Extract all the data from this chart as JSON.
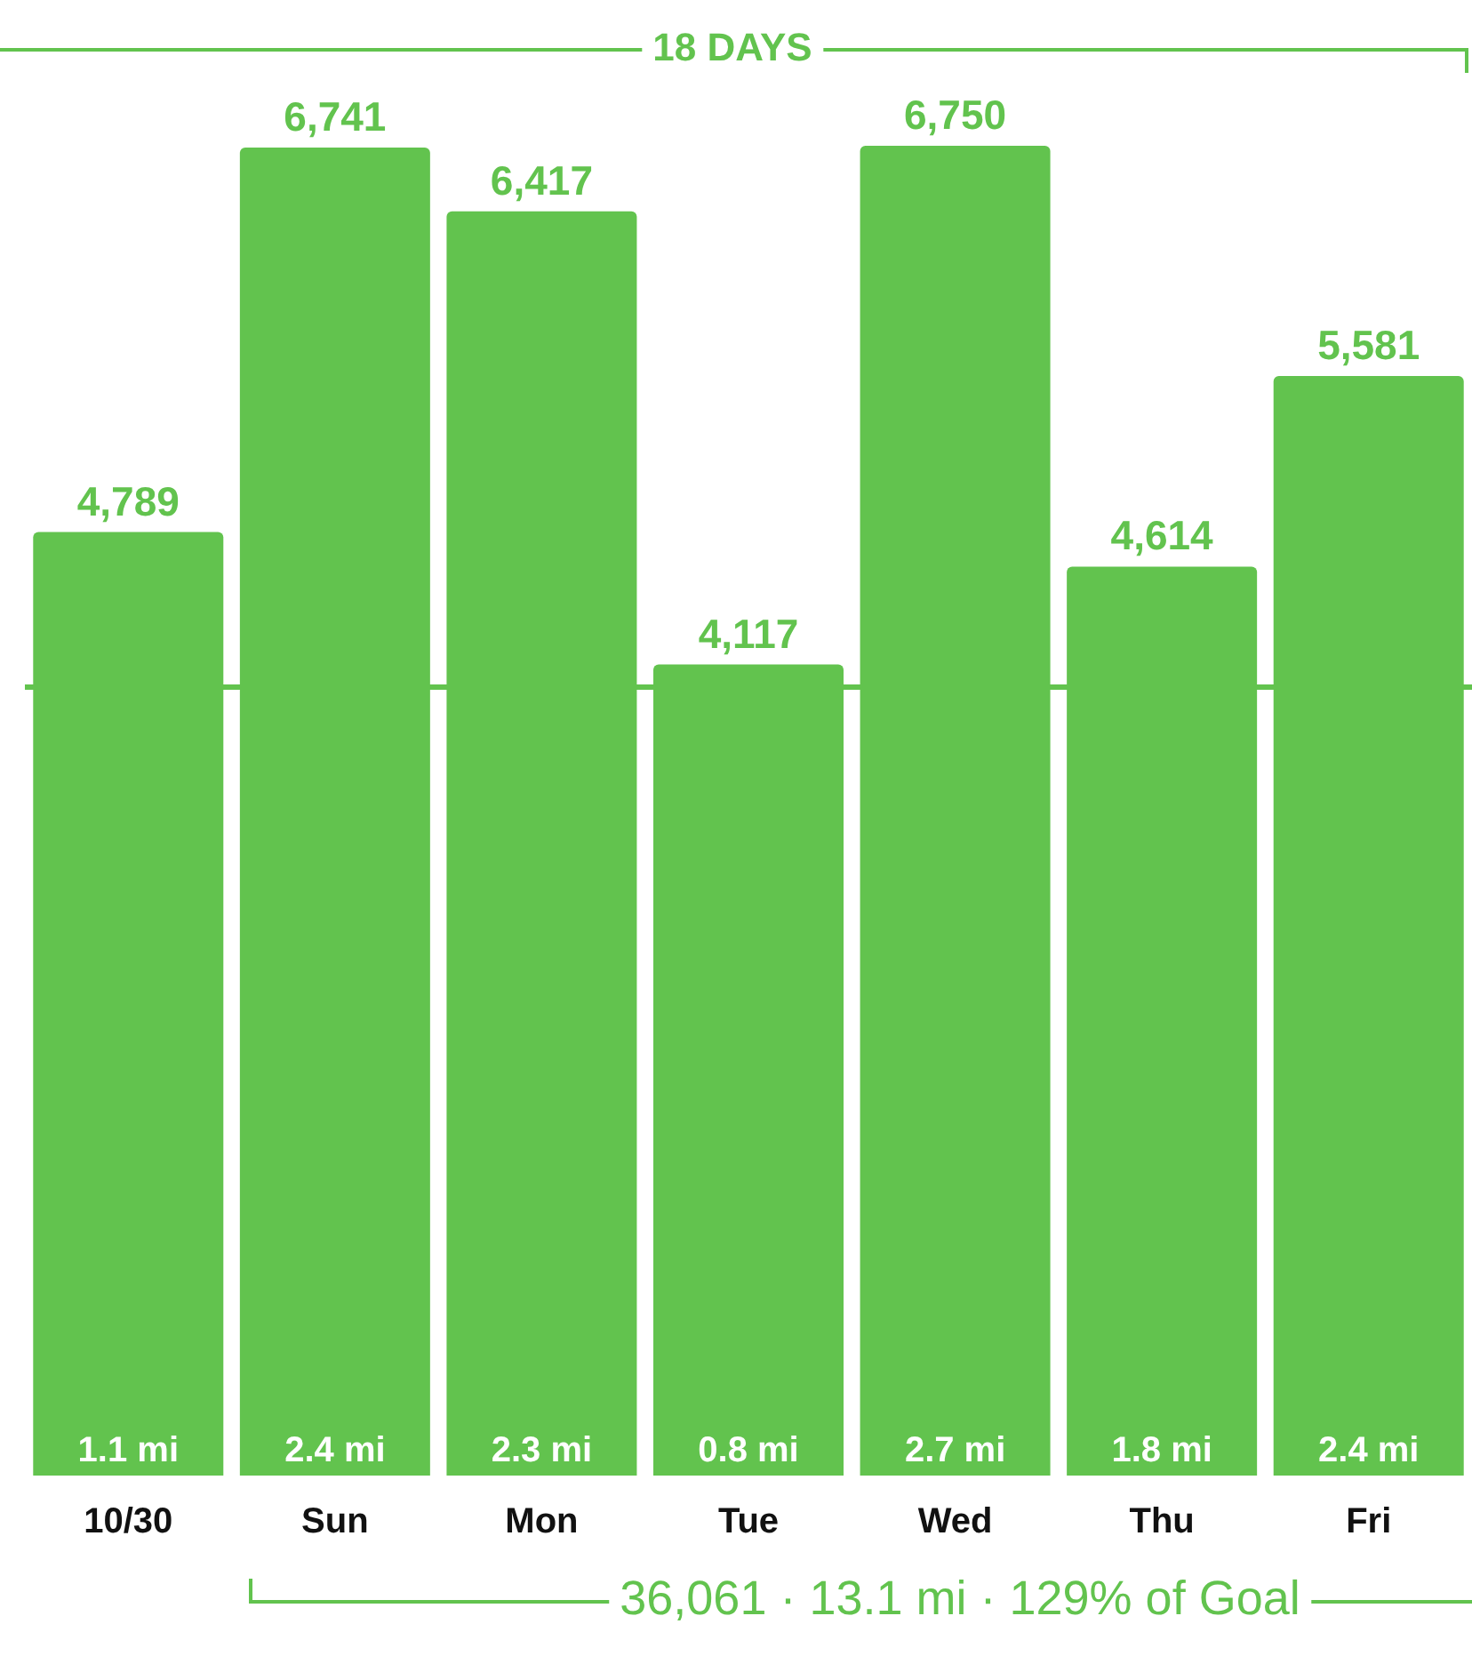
{
  "chart_data": {
    "type": "bar",
    "categories": [
      "10/30",
      "Sun",
      "Mon",
      "Tue",
      "Wed",
      "Thu",
      "Fri"
    ],
    "values": [
      4789,
      6741,
      6417,
      4117,
      6750,
      4614,
      5581
    ],
    "color": "#62c34e",
    "value_labels": [
      "4,789",
      "6,741",
      "6,417",
      "4,117",
      "6,750",
      "4,614",
      "5,581"
    ],
    "ref_lines": [
      {
        "axis": "y",
        "value": 4000,
        "color": "#62c34e"
      }
    ],
    "annotations": [
      "18 DAYS",
      "36,061 · 13.1 mi · 129% of Goal",
      {
        "text": "1.1 mi",
        "x": "10/30",
        "y": 0
      },
      {
        "text": "2.4 mi",
        "x": "Sun",
        "y": 0
      },
      {
        "text": "2.3 mi",
        "x": "Mon",
        "y": 0
      },
      {
        "text": "0.8 mi",
        "x": "Tue",
        "y": 0
      },
      {
        "text": "2.7 mi",
        "x": "Wed",
        "y": 0
      },
      {
        "text": "1.8 mi",
        "x": "Thu",
        "y": 0
      },
      {
        "text": "2.4 mi",
        "x": "Fri",
        "y": 0
      }
    ]
  }
}
